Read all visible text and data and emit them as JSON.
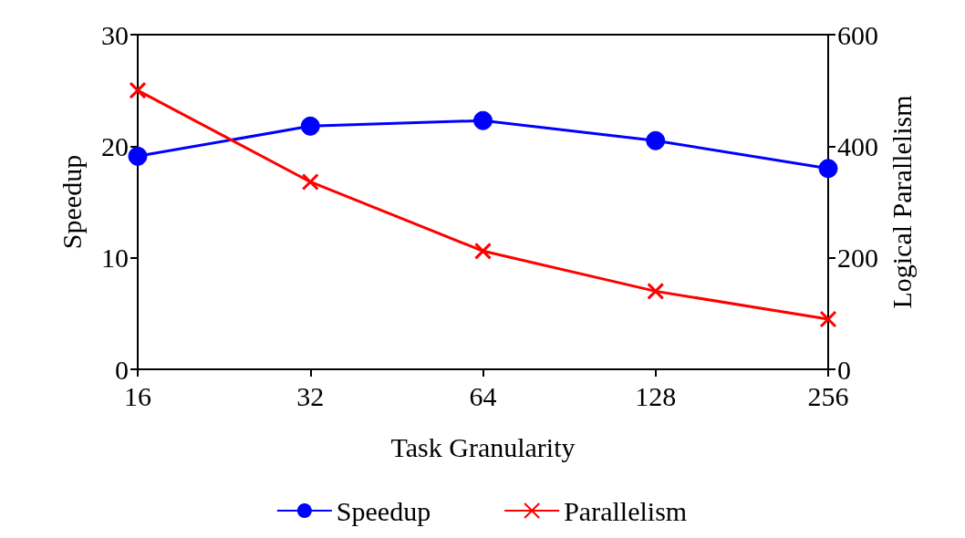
{
  "chart_data": {
    "type": "line",
    "xlabel": "Task Granularity",
    "ylabel": "Speedup",
    "y2label": "Logical Parallelism",
    "categories": [
      "16",
      "32",
      "64",
      "128",
      "256"
    ],
    "series": [
      {
        "name": "Speedup",
        "color": "#0000ff",
        "marker": "circle",
        "values": [
          19.1,
          21.8,
          22.3,
          20.5,
          18.0
        ]
      },
      {
        "name": "Parallelism",
        "color": "#ff0000",
        "marker": "cross",
        "axis": "y2",
        "values": [
          500,
          336,
          212,
          140,
          90
        ]
      }
    ],
    "ylim": [
      0,
      30
    ],
    "yticks": [
      0,
      10,
      20,
      30
    ],
    "y2lim": [
      0,
      600
    ],
    "y2ticks": [
      0,
      200,
      400,
      600
    ],
    "grid": false,
    "legend": "bottom"
  }
}
